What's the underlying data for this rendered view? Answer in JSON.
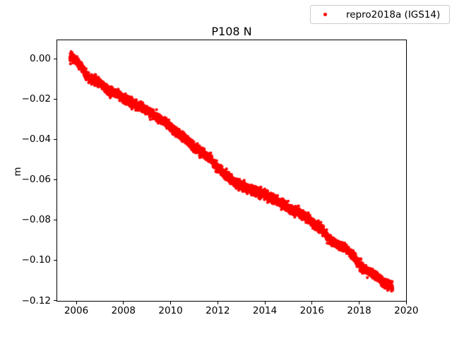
{
  "figure": {
    "background_color": "#ffffff"
  },
  "chart_data": {
    "type": "scatter",
    "title": "P108 N",
    "xlabel": "",
    "ylabel": "m",
    "grid": false,
    "xlim": [
      2005.16,
      2020.02
    ],
    "ylim": [
      -0.1205,
      0.0095
    ],
    "x_axis": {
      "tick_values": [
        2006,
        2008,
        2010,
        2012,
        2014,
        2016,
        2018,
        2020
      ],
      "tick_labels": [
        "2006",
        "2008",
        "2010",
        "2012",
        "2014",
        "2016",
        "2018",
        "2020"
      ]
    },
    "y_axis": {
      "tick_values": [
        0.0,
        -0.02,
        -0.04,
        -0.06,
        -0.08,
        -0.1,
        -0.12
      ],
      "tick_labels": [
        "0.00",
        "−0.02",
        "−0.04",
        "−0.06",
        "−0.08",
        "−0.10",
        "−0.12"
      ]
    },
    "legend": {
      "position": "upper right",
      "label": "repro2018a (IGS14)",
      "marker_color": "#ff0000"
    },
    "series": [
      {
        "name": "repro2018a (IGS14)",
        "color": "#ff0000",
        "marker": "dot",
        "marker_radius_px": 2.1,
        "x_start": 2005.73,
        "x_end": 2019.42,
        "points_per_year": 365,
        "noise_sigma_m": 0.0011,
        "trend_centerline": [
          [
            2005.73,
            0.0012
          ],
          [
            2005.85,
            0.0004
          ],
          [
            2006.0,
            -0.0012
          ],
          [
            2006.2,
            -0.004
          ],
          [
            2006.45,
            -0.0085
          ],
          [
            2006.7,
            -0.0105
          ],
          [
            2007.0,
            -0.012
          ],
          [
            2007.3,
            -0.0155
          ],
          [
            2007.6,
            -0.017
          ],
          [
            2008.0,
            -0.0195
          ],
          [
            2008.35,
            -0.022
          ],
          [
            2008.7,
            -0.0235
          ],
          [
            2009.0,
            -0.0255
          ],
          [
            2009.4,
            -0.029
          ],
          [
            2009.7,
            -0.031
          ],
          [
            2010.0,
            -0.034
          ],
          [
            2010.4,
            -0.0375
          ],
          [
            2010.7,
            -0.0405
          ],
          [
            2011.0,
            -0.044
          ],
          [
            2011.4,
            -0.047
          ],
          [
            2011.7,
            -0.05
          ],
          [
            2012.0,
            -0.0545
          ],
          [
            2012.4,
            -0.058
          ],
          [
            2012.7,
            -0.061
          ],
          [
            2013.0,
            -0.063
          ],
          [
            2013.4,
            -0.065
          ],
          [
            2013.7,
            -0.066
          ],
          [
            2014.0,
            -0.0675
          ],
          [
            2014.4,
            -0.07
          ],
          [
            2014.7,
            -0.072
          ],
          [
            2015.0,
            -0.074
          ],
          [
            2015.4,
            -0.076
          ],
          [
            2015.7,
            -0.078
          ],
          [
            2016.0,
            -0.0815
          ],
          [
            2016.4,
            -0.0845
          ],
          [
            2016.7,
            -0.089
          ],
          [
            2017.0,
            -0.092
          ],
          [
            2017.4,
            -0.094
          ],
          [
            2017.7,
            -0.097
          ],
          [
            2018.0,
            -0.1025
          ],
          [
            2018.4,
            -0.1055
          ],
          [
            2018.7,
            -0.1075
          ],
          [
            2019.0,
            -0.1105
          ],
          [
            2019.25,
            -0.1125
          ],
          [
            2019.42,
            -0.113
          ]
        ]
      }
    ]
  }
}
